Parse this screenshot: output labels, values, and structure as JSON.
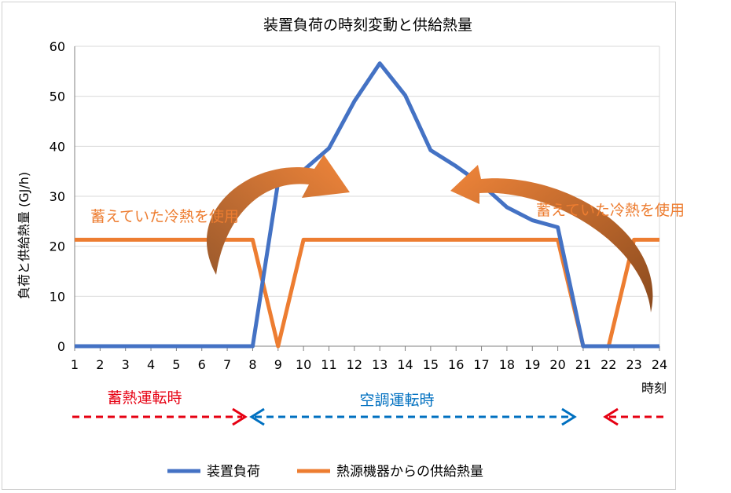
{
  "chart_data": {
    "type": "line",
    "title": "装置負荷の時刻変動と供給熱量",
    "ylabel": "負荷と供給熱量 (GJ/h)",
    "xlabel": "時刻",
    "x": [
      1,
      2,
      3,
      4,
      5,
      6,
      7,
      8,
      9,
      10,
      11,
      12,
      13,
      14,
      15,
      16,
      17,
      18,
      19,
      20,
      21,
      22,
      23,
      24
    ],
    "ylim": [
      0,
      60
    ],
    "yticks": [
      0,
      10,
      20,
      30,
      40,
      50,
      60
    ],
    "grid": true,
    "legend": "bottom",
    "series": [
      {
        "name": "装置負荷",
        "color": "#4472c4",
        "values": [
          0,
          0,
          0,
          0,
          0,
          0,
          0,
          0,
          32.8,
          35.2,
          39.6,
          49.0,
          56.6,
          50.2,
          39.2,
          36.0,
          32.4,
          27.8,
          25.2,
          23.8,
          0,
          0,
          0,
          0
        ]
      },
      {
        "name": "熱源機器からの供給熱量",
        "color": "#ed7d31",
        "values": [
          21.3,
          21.3,
          21.3,
          21.3,
          21.3,
          21.3,
          21.3,
          21.3,
          0,
          21.3,
          21.3,
          21.3,
          21.3,
          21.3,
          21.3,
          21.3,
          21.3,
          21.3,
          21.3,
          21.3,
          0,
          0,
          21.3,
          21.3
        ]
      }
    ],
    "annotations": {
      "stored_cold_left": "蓄えていた冷熱を使用",
      "stored_cold_right": "蓄えていた冷熱を使用",
      "storage_operation": "蓄熱運転時",
      "ac_operation": "空調運転時"
    },
    "colors": {
      "storage_arrow": "#e60012",
      "ac_arrow": "#0070c0",
      "curved_arrow_start": "#9c5a2c",
      "curved_arrow_end": "#f0853a",
      "gridline": "#d9d9d9",
      "annotation_text": "#ed7d31"
    }
  }
}
